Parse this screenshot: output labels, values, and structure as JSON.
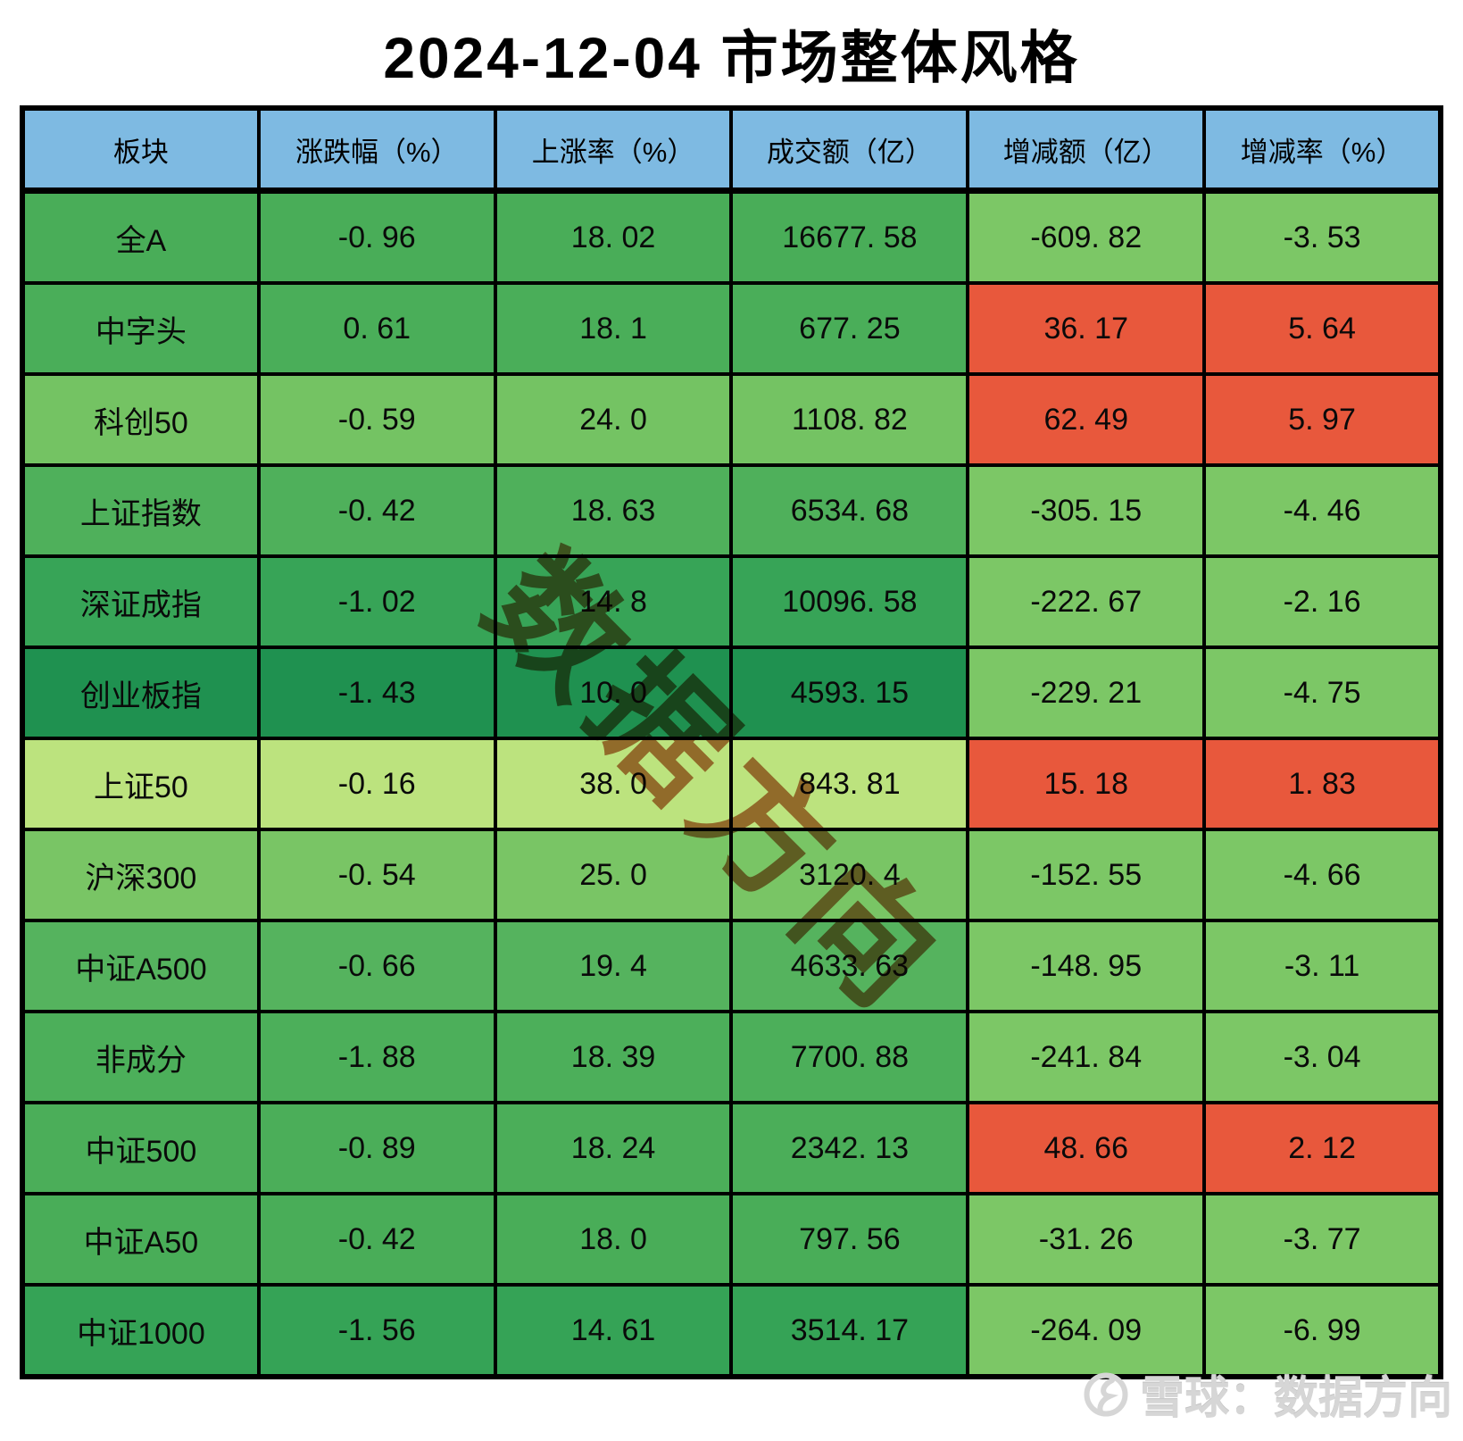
{
  "title": "2024-12-04 市场整体风格",
  "watermark": {
    "text": "数据方向",
    "color": "#B85A2E"
  },
  "footer": {
    "brand_text": "雪球：数据方向",
    "logo": "xueqiu-circle-logo",
    "text_color": "#D6D6D6"
  },
  "colors": {
    "header_bg": "#7EBAE2",
    "border": "#000000",
    "positive_bg": "#E8583C",
    "negative_bg": "#7CC766",
    "title_text": "#000000"
  },
  "table": {
    "headers": [
      "板块",
      "涨跌幅（%）",
      "上涨率（%）",
      "成交额（亿）",
      "增减额（亿）",
      "增减率（%）"
    ],
    "rows": [
      {
        "label": "全A",
        "values": [
          "-0. 96",
          "18. 02",
          "16677. 58",
          "-609. 82",
          "-3. 53"
        ],
        "row_bg": "#49AD58",
        "delta_bg": "#7CC766"
      },
      {
        "label": "中字头",
        "values": [
          "0. 61",
          "18. 1",
          "677. 25",
          "36. 17",
          "5. 64"
        ],
        "row_bg": "#4AAE59",
        "delta_bg": "#E8583C"
      },
      {
        "label": "科创50",
        "values": [
          "-0. 59",
          "24. 0",
          "1108. 82",
          "62. 49",
          "5. 97"
        ],
        "row_bg": "#74C363",
        "delta_bg": "#E8583C"
      },
      {
        "label": "上证指数",
        "values": [
          "-0. 42",
          "18. 63",
          "6534. 68",
          "-305. 15",
          "-4. 46"
        ],
        "row_bg": "#4FB05B",
        "delta_bg": "#7CC766"
      },
      {
        "label": "深证成指",
        "values": [
          "-1. 02",
          "14. 8",
          "10096. 58",
          "-222. 67",
          "-2. 16"
        ],
        "row_bg": "#37A457",
        "delta_bg": "#7CC766"
      },
      {
        "label": "创业板指",
        "values": [
          "-1. 43",
          "10. 0",
          "4593. 15",
          "-229. 21",
          "-4. 75"
        ],
        "row_bg": "#1F9150",
        "delta_bg": "#7CC766"
      },
      {
        "label": "上证50",
        "values": [
          "-0. 16",
          "38. 0",
          "843. 81",
          "15. 18",
          "1. 83"
        ],
        "row_bg": "#BCE37E",
        "delta_bg": "#E8583C"
      },
      {
        "label": "沪深300",
        "values": [
          "-0. 54",
          "25. 0",
          "3120. 4",
          "-152. 55",
          "-4. 66"
        ],
        "row_bg": "#79C565",
        "delta_bg": "#7CC766"
      },
      {
        "label": "中证A500",
        "values": [
          "-0. 66",
          "19. 4",
          "4633. 63",
          "-148. 95",
          "-3. 11"
        ],
        "row_bg": "#55B35E",
        "delta_bg": "#7CC766"
      },
      {
        "label": "非成分",
        "values": [
          "-1. 88",
          "18. 39",
          "7700. 88",
          "-241. 84",
          "-3. 04"
        ],
        "row_bg": "#4CAF5A",
        "delta_bg": "#7CC766"
      },
      {
        "label": "中证500",
        "values": [
          "-0. 89",
          "18. 24",
          "2342. 13",
          "48. 66",
          "2. 12"
        ],
        "row_bg": "#4BAE59",
        "delta_bg": "#E8583C"
      },
      {
        "label": "中证A50",
        "values": [
          "-0. 42",
          "18. 0",
          "797. 56",
          "-31. 26",
          "-3. 77"
        ],
        "row_bg": "#49AD58",
        "delta_bg": "#7CC766"
      },
      {
        "label": "中证1000",
        "values": [
          "-1. 56",
          "14. 61",
          "3514. 17",
          "-264. 09",
          "-6. 99"
        ],
        "row_bg": "#35A356",
        "delta_bg": "#7CC766"
      }
    ]
  },
  "chart_data": {
    "type": "table",
    "title": "2024-12-04 市场整体风格",
    "columns": [
      "板块",
      "涨跌幅（%）",
      "上涨率（%）",
      "成交额（亿）",
      "增减额（亿）",
      "增减率（%）"
    ],
    "rows": [
      [
        "全A",
        -0.96,
        18.02,
        16677.58,
        -609.82,
        -3.53
      ],
      [
        "中字头",
        0.61,
        18.1,
        677.25,
        36.17,
        5.64
      ],
      [
        "科创50",
        -0.59,
        24.0,
        1108.82,
        62.49,
        5.97
      ],
      [
        "上证指数",
        -0.42,
        18.63,
        6534.68,
        -305.15,
        -4.46
      ],
      [
        "深证成指",
        -1.02,
        14.8,
        10096.58,
        -222.67,
        -2.16
      ],
      [
        "创业板指",
        -1.43,
        10.0,
        4593.15,
        -229.21,
        -4.75
      ],
      [
        "上证50",
        -0.16,
        38.0,
        843.81,
        15.18,
        1.83
      ],
      [
        "沪深300",
        -0.54,
        25.0,
        3120.4,
        -152.55,
        -4.66
      ],
      [
        "中证A500",
        -0.66,
        19.4,
        4633.63,
        -148.95,
        -3.11
      ],
      [
        "非成分",
        -1.88,
        18.39,
        7700.88,
        -241.84,
        -3.04
      ],
      [
        "中证500",
        -0.89,
        18.24,
        2342.13,
        48.66,
        2.12
      ],
      [
        "中证A50",
        -0.42,
        18.0,
        797.56,
        -31.26,
        -3.77
      ],
      [
        "中证1000",
        -1.56,
        14.61,
        3514.17,
        -264.09,
        -6.99
      ]
    ],
    "color_encoding": "首四列按上涨率着绿色渐变（低=深绿，高=黄绿）；增减额/增减率列：正值红色，负值浅绿色"
  }
}
